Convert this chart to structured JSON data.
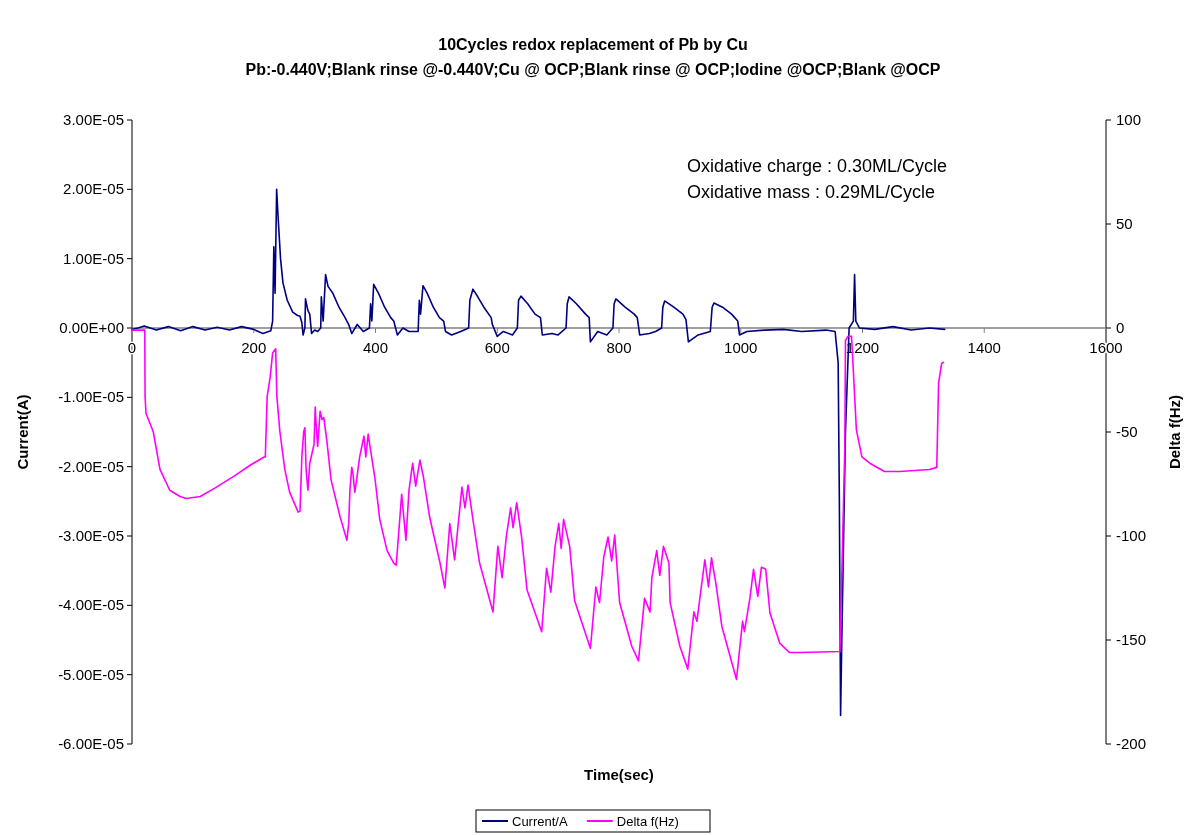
{
  "chart_data": {
    "type": "line",
    "title": "10Cycles redox replacement of Pb by Cu",
    "subtitle": "Pb:-0.440V;Blank rinse @-0.440V;Cu @ OCP;Blank rinse @ OCP;Iodine @OCP;Blank @OCP",
    "xlabel": "Time(sec)",
    "ylabel": "Current(A)",
    "y2label": "Delta f(Hz)",
    "xlim": [
      0,
      1600
    ],
    "xticks": [
      0,
      200,
      400,
      600,
      800,
      1000,
      1200,
      1400,
      1600
    ],
    "ylim": [
      -6e-05,
      3e-05
    ],
    "yticks": [
      {
        "value": 3e-05,
        "label": "3.00E-05"
      },
      {
        "value": 2e-05,
        "label": "2.00E-05"
      },
      {
        "value": 1e-05,
        "label": "1.00E-05"
      },
      {
        "value": 0,
        "label": "0.00E+00"
      },
      {
        "value": -1e-05,
        "label": "-1.00E-05"
      },
      {
        "value": -2e-05,
        "label": "-2.00E-05"
      },
      {
        "value": -3e-05,
        "label": "-3.00E-05"
      },
      {
        "value": -4e-05,
        "label": "-4.00E-05"
      },
      {
        "value": -5e-05,
        "label": "-5.00E-05"
      },
      {
        "value": -6e-05,
        "label": "-6.00E-05"
      }
    ],
    "y2lim": [
      -200,
      100
    ],
    "y2ticks": [
      100,
      50,
      0,
      -50,
      -100,
      -150,
      -200
    ],
    "grid": false,
    "legend": "bottom",
    "marker": "none",
    "line_style": "solid",
    "annotations": [
      "Oxidative charge : 0.30ML/Cycle",
      "Oxidative mass :   0.29ML/Cycle"
    ],
    "series": [
      {
        "name": "Current/A",
        "color": "#000080",
        "x": [
          0,
          10,
          20,
          40,
          60,
          80,
          100,
          120,
          140,
          160,
          180,
          200,
          215,
          228,
          231,
          233,
          235,
          237.6,
          240,
          244,
          248,
          255,
          264,
          272,
          276,
          279,
          281,
          284,
          285,
          289,
          292,
          295,
          300,
          305,
          310,
          311,
          314,
          318,
          322,
          330,
          340,
          350,
          356,
          361,
          370,
          380,
          390,
          392,
          394,
          397,
          405,
          415,
          425,
          430,
          436,
          445,
          455,
          470,
          472,
          474,
          478,
          485,
          495,
          505,
          512,
          515,
          525,
          540,
          553,
          555,
          560,
          568,
          578,
          590,
          592,
          600,
          610,
          625,
          633,
          635,
          639,
          650,
          662,
          671,
          674,
          690,
          700,
          713,
          715,
          718,
          730,
          745,
          751,
          753,
          765,
          780,
          790,
          792,
          795,
          810,
          825,
          830,
          834,
          850,
          860,
          870,
          872,
          875,
          890,
          905,
          910,
          914,
          930,
          950,
          953,
          956,
          970,
          985,
          995,
          998,
          1010,
          1040,
          1070,
          1100,
          1140,
          1155,
          1160,
          1162,
          1164,
          1166,
          1169,
          1172,
          1178,
          1185,
          1187,
          1189,
          1195,
          1220,
          1250,
          1280,
          1310,
          1335
        ],
        "values": [
          -2e-07,
          0,
          3e-07,
          -3e-07,
          2e-07,
          -4e-07,
          2e-07,
          -3e-07,
          1e-07,
          -3e-07,
          2e-07,
          -2e-07,
          -8e-07,
          -4e-07,
          1e-06,
          1.17e-05,
          5e-06,
          2e-05,
          1.6e-05,
          1e-05,
          6.5e-06,
          4e-06,
          2.3e-06,
          1.8e-06,
          1.7e-06,
          8e-07,
          -1e-06,
          0,
          4.2e-06,
          2.5e-06,
          2e-06,
          -8e-07,
          -3e-07,
          -5e-07,
          0,
          4.5e-06,
          1e-06,
          7.7e-06,
          6e-06,
          5e-06,
          3e-06,
          1.5e-06,
          5e-07,
          -8e-07,
          5e-07,
          -5e-07,
          0,
          3.5e-06,
          1e-06,
          6.3e-06,
          5e-06,
          3e-06,
          1.5e-06,
          1e-06,
          -1e-06,
          0,
          -5e-07,
          -5e-07,
          4e-06,
          2e-06,
          6.1e-06,
          5e-06,
          3e-06,
          1.5e-06,
          1e-06,
          -5e-07,
          -1e-06,
          -5e-07,
          0,
          4e-06,
          5.6e-06,
          4.5e-06,
          3e-06,
          1.5e-06,
          5e-07,
          -1.2e-06,
          -5e-07,
          -1e-06,
          0,
          4e-06,
          4.6e-06,
          3.5e-06,
          2e-06,
          1.5e-06,
          -1e-06,
          -8e-07,
          -1e-06,
          0,
          3.5e-06,
          4.5e-06,
          3.5e-06,
          2e-06,
          1.5e-06,
          -2e-06,
          -5e-07,
          -1e-06,
          0,
          3.5e-06,
          4.2e-06,
          3e-06,
          2e-06,
          1.5e-06,
          -1e-06,
          -8e-07,
          -5e-07,
          0,
          3e-06,
          3.9e-06,
          3e-06,
          2e-06,
          1.2e-06,
          -2e-06,
          -1e-06,
          -5e-07,
          3e-06,
          3.6e-06,
          3e-06,
          2e-06,
          1e-06,
          -1e-06,
          -5e-07,
          -3e-07,
          -2e-07,
          -5e-07,
          -3e-07,
          -5e-07,
          -5e-06,
          -2.5e-05,
          -5.59e-05,
          -4.5e-05,
          -3e-05,
          -1.5e-05,
          0,
          1e-06,
          7.7e-06,
          1e-06,
          0,
          -2e-07,
          2e-07,
          -3e-07,
          0,
          -2e-07
        ]
      },
      {
        "name": "Delta f(Hz)",
        "color": "#ff00ff",
        "axis": "y2",
        "x": [
          0,
          10,
          21,
          21.5,
          23,
          35,
          46,
          62,
          79,
          89,
          112,
          136,
          169,
          194,
          217,
          219,
          222,
          227,
          231,
          236,
          238,
          243,
          251,
          259,
          273,
          276,
          279,
          282,
          284,
          286,
          289,
          292,
          299,
          301,
          302,
          305,
          309,
          312,
          315,
          320,
          327,
          342,
          351,
          353,
          356,
          358,
          361,
          363,
          366,
          369,
          374,
          381,
          384,
          388,
          391,
          399,
          407,
          419,
          430,
          434,
          443,
          450,
          455,
          461,
          466,
          473,
          479,
          489,
          506,
          514,
          522,
          530,
          537,
          542,
          547,
          552,
          560,
          571,
          593,
          601,
          608,
          615,
          622,
          626,
          632,
          640,
          649,
          673,
          681,
          688,
          695,
          701,
          705,
          709,
          719,
          727,
          753,
          762,
          768,
          775,
          782,
          788,
          793,
          801,
          821,
          832,
          842,
          851,
          854,
          862,
          867,
          873,
          882,
          884,
          900,
          913,
          923,
          928,
          935,
          941,
          947,
          952,
          959,
          969,
          993,
          1003,
          1006,
          1015,
          1021,
          1028,
          1034,
          1041,
          1048,
          1064,
          1080,
          1097,
          1163,
          1171,
          1172,
          1176,
          1182,
          1190,
          1199,
          1212,
          1236,
          1261,
          1310,
          1322,
          1325,
          1330,
          1333
        ],
        "values": [
          -1,
          -1,
          -1,
          -33,
          -41,
          -50,
          -68,
          -78,
          -81,
          -82,
          -81,
          -77,
          -71,
          -66,
          -62,
          -62,
          -33,
          -23.5,
          -12,
          -10,
          -33,
          -50,
          -68,
          -79,
          -88.5,
          -88,
          -62,
          -50,
          -48,
          -68,
          -78,
          -65,
          -56,
          -38,
          -44,
          -57,
          -40,
          -44,
          -43,
          -54,
          -73,
          -91,
          -100,
          -102,
          -94,
          -78,
          -67,
          -70,
          -79,
          -73,
          -62,
          -52,
          -62,
          -51,
          -57,
          -72,
          -92,
          -107,
          -113,
          -114,
          -80,
          -102,
          -78,
          -65,
          -76,
          -63.5,
          -72,
          -91,
          -113,
          -125,
          -94,
          -111.5,
          -91,
          -76.5,
          -86.5,
          -75.5,
          -92,
          -113,
          -136.5,
          -105,
          -120,
          -100,
          -86.5,
          -96,
          -84,
          -100.5,
          -126,
          -146,
          -115.5,
          -127,
          -105,
          -94,
          -106,
          -92,
          -105,
          -131,
          -154,
          -124.5,
          -132,
          -110,
          -100.5,
          -112,
          -99.5,
          -132,
          -153,
          -160,
          -130,
          -136.5,
          -120,
          -107,
          -119,
          -105,
          -113,
          -132,
          -153,
          -164,
          -136.5,
          -141,
          -125,
          -111.5,
          -124.5,
          -110.5,
          -122.5,
          -143.5,
          -169,
          -141,
          -146,
          -130,
          -116,
          -129,
          -115,
          -116,
          -137,
          -151.5,
          -156,
          -156,
          -155.5,
          -57,
          -6,
          -4,
          -4,
          -49,
          -62,
          -65,
          -69,
          -69,
          -68,
          -67,
          -26.5,
          -17,
          -16.5
        ]
      }
    ]
  }
}
